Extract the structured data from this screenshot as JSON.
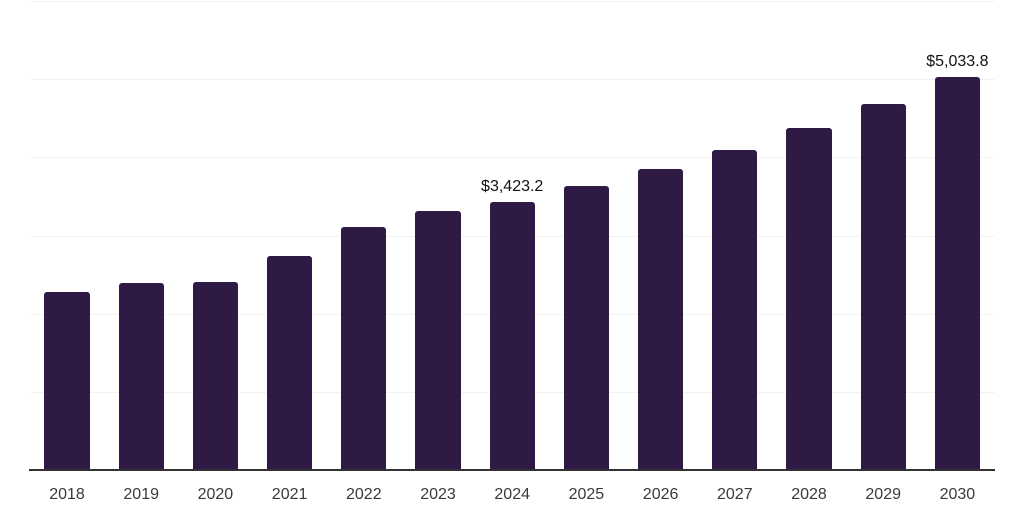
{
  "chart_data": {
    "type": "bar",
    "title": "",
    "xlabel": "",
    "ylabel": "",
    "categories": [
      "2018",
      "2019",
      "2020",
      "2021",
      "2022",
      "2023",
      "2024",
      "2025",
      "2026",
      "2027",
      "2028",
      "2029",
      "2030"
    ],
    "values": [
      2280,
      2390,
      2410,
      2740,
      3110,
      3310,
      3423.2,
      3630,
      3850,
      4100,
      4380,
      4680,
      5033.8
    ],
    "data_labels": {
      "2024": "$3,423.2",
      "2030": "$5,033.8"
    },
    "ylim": [
      0,
      6000
    ],
    "gridline_values": [
      1000,
      2000,
      3000,
      4000,
      5000,
      6000
    ],
    "grid": "horizontal",
    "legend": "none",
    "bar_color": "#2f1a46",
    "gridline_color": "#f2f2f4",
    "axis_line_color": "#333333",
    "tick_label_color": "#3a3a3a",
    "value_label_color": "#121212",
    "background_color": "#ffffff"
  }
}
